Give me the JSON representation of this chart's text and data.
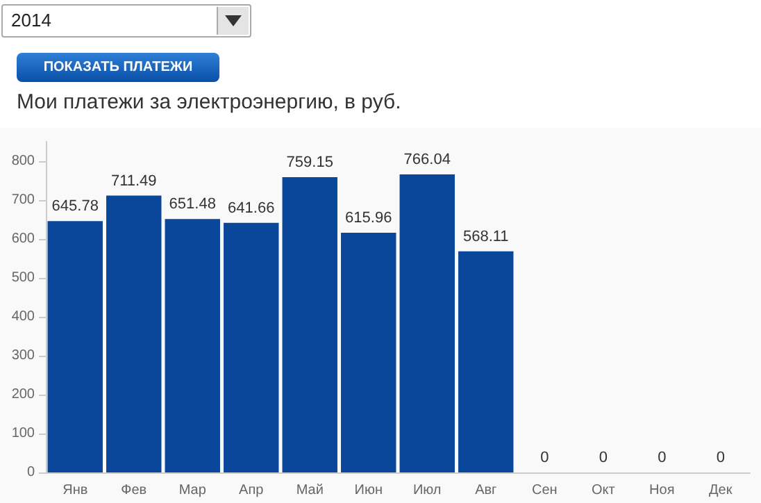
{
  "chart_data": {
    "type": "bar",
    "title": "Мои платежи за электроэнергию, в руб.",
    "annotations": [
      "2014",
      "ПОКАЗАТЬ ПЛАТЕЖИ"
    ],
    "categories": [
      "Янв",
      "Фев",
      "Мар",
      "Апр",
      "Май",
      "Июн",
      "Июл",
      "Авг",
      "Сен",
      "Окт",
      "Ноя",
      "Дек"
    ],
    "values": [
      645.78,
      711.49,
      651.48,
      641.66,
      759.15,
      615.96,
      766.04,
      568.11,
      0,
      0,
      0,
      0
    ],
    "color": "#0a4699",
    "ylim": [
      0,
      850
    ],
    "yticks": [
      0,
      100,
      200,
      300,
      400,
      500,
      600,
      700,
      800
    ],
    "data_labels": true,
    "grid": false
  }
}
